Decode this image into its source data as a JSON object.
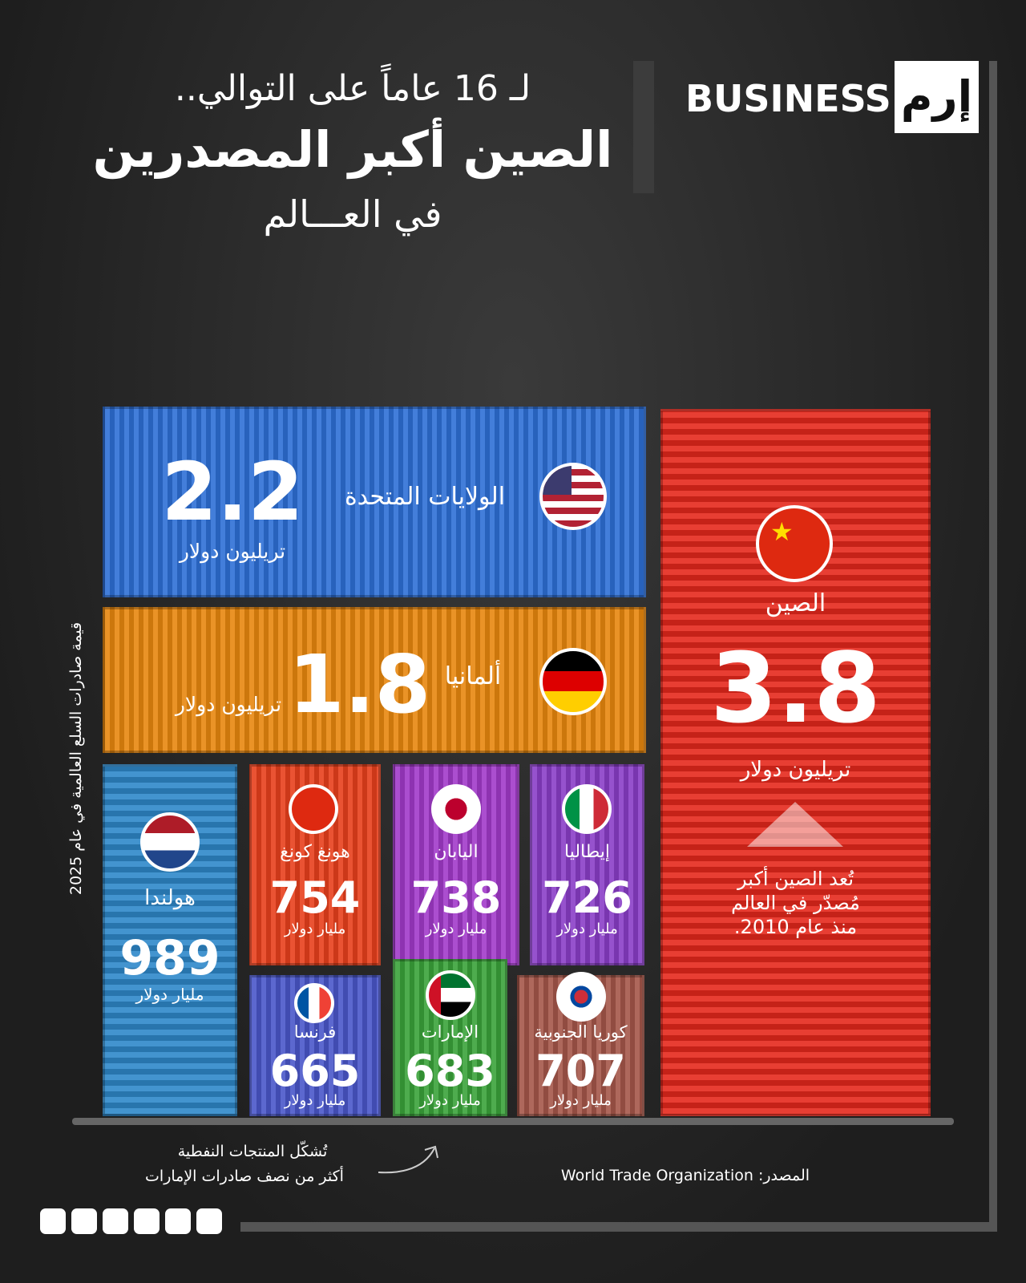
{
  "header": {
    "line1": "لـ 16 عاماً على التوالي..",
    "line2": "الصين أكبر المصدرين",
    "line3": "في العـــالم"
  },
  "logo": {
    "word": "BUSINESS",
    "mark": "إرم"
  },
  "side_label": "قيمة صادرات السلع العالمية في عام 2025",
  "containers": [
    {
      "country": "الصين",
      "value": "3.8",
      "unit": "تريليون دولار"
    },
    {
      "country": "الولايات المتحدة",
      "value": "2.2",
      "unit": "تريليون دولار"
    },
    {
      "country": "ألمانيا",
      "value": "1.8",
      "unit": "تريليون دولار"
    },
    {
      "country": "هولندا",
      "value": "989",
      "unit": "مليار دولار"
    },
    {
      "country": "هونغ كونغ",
      "value": "754",
      "unit": "مليار دولار"
    },
    {
      "country": "اليابان",
      "value": "738",
      "unit": "مليار دولار"
    },
    {
      "country": "إيطاليا",
      "value": "726",
      "unit": "مليار دولار"
    },
    {
      "country": "كوريا الجنوبية",
      "value": "707",
      "unit": "مليار دولار"
    },
    {
      "country": "الإمارات",
      "value": "683",
      "unit": "مليار دولار"
    },
    {
      "country": "فرنسا",
      "value": "665",
      "unit": "مليار دولار"
    }
  ],
  "china_note": [
    "تُعد الصين أكبر",
    "مُصدّر في العالم",
    "منذ عام 2010."
  ],
  "uae_note": [
    "تُشكّل المنتجات النفطية",
    "أكثر من نصف صادرات الإمارات"
  ],
  "source": "المصدر: World Trade Organization"
}
